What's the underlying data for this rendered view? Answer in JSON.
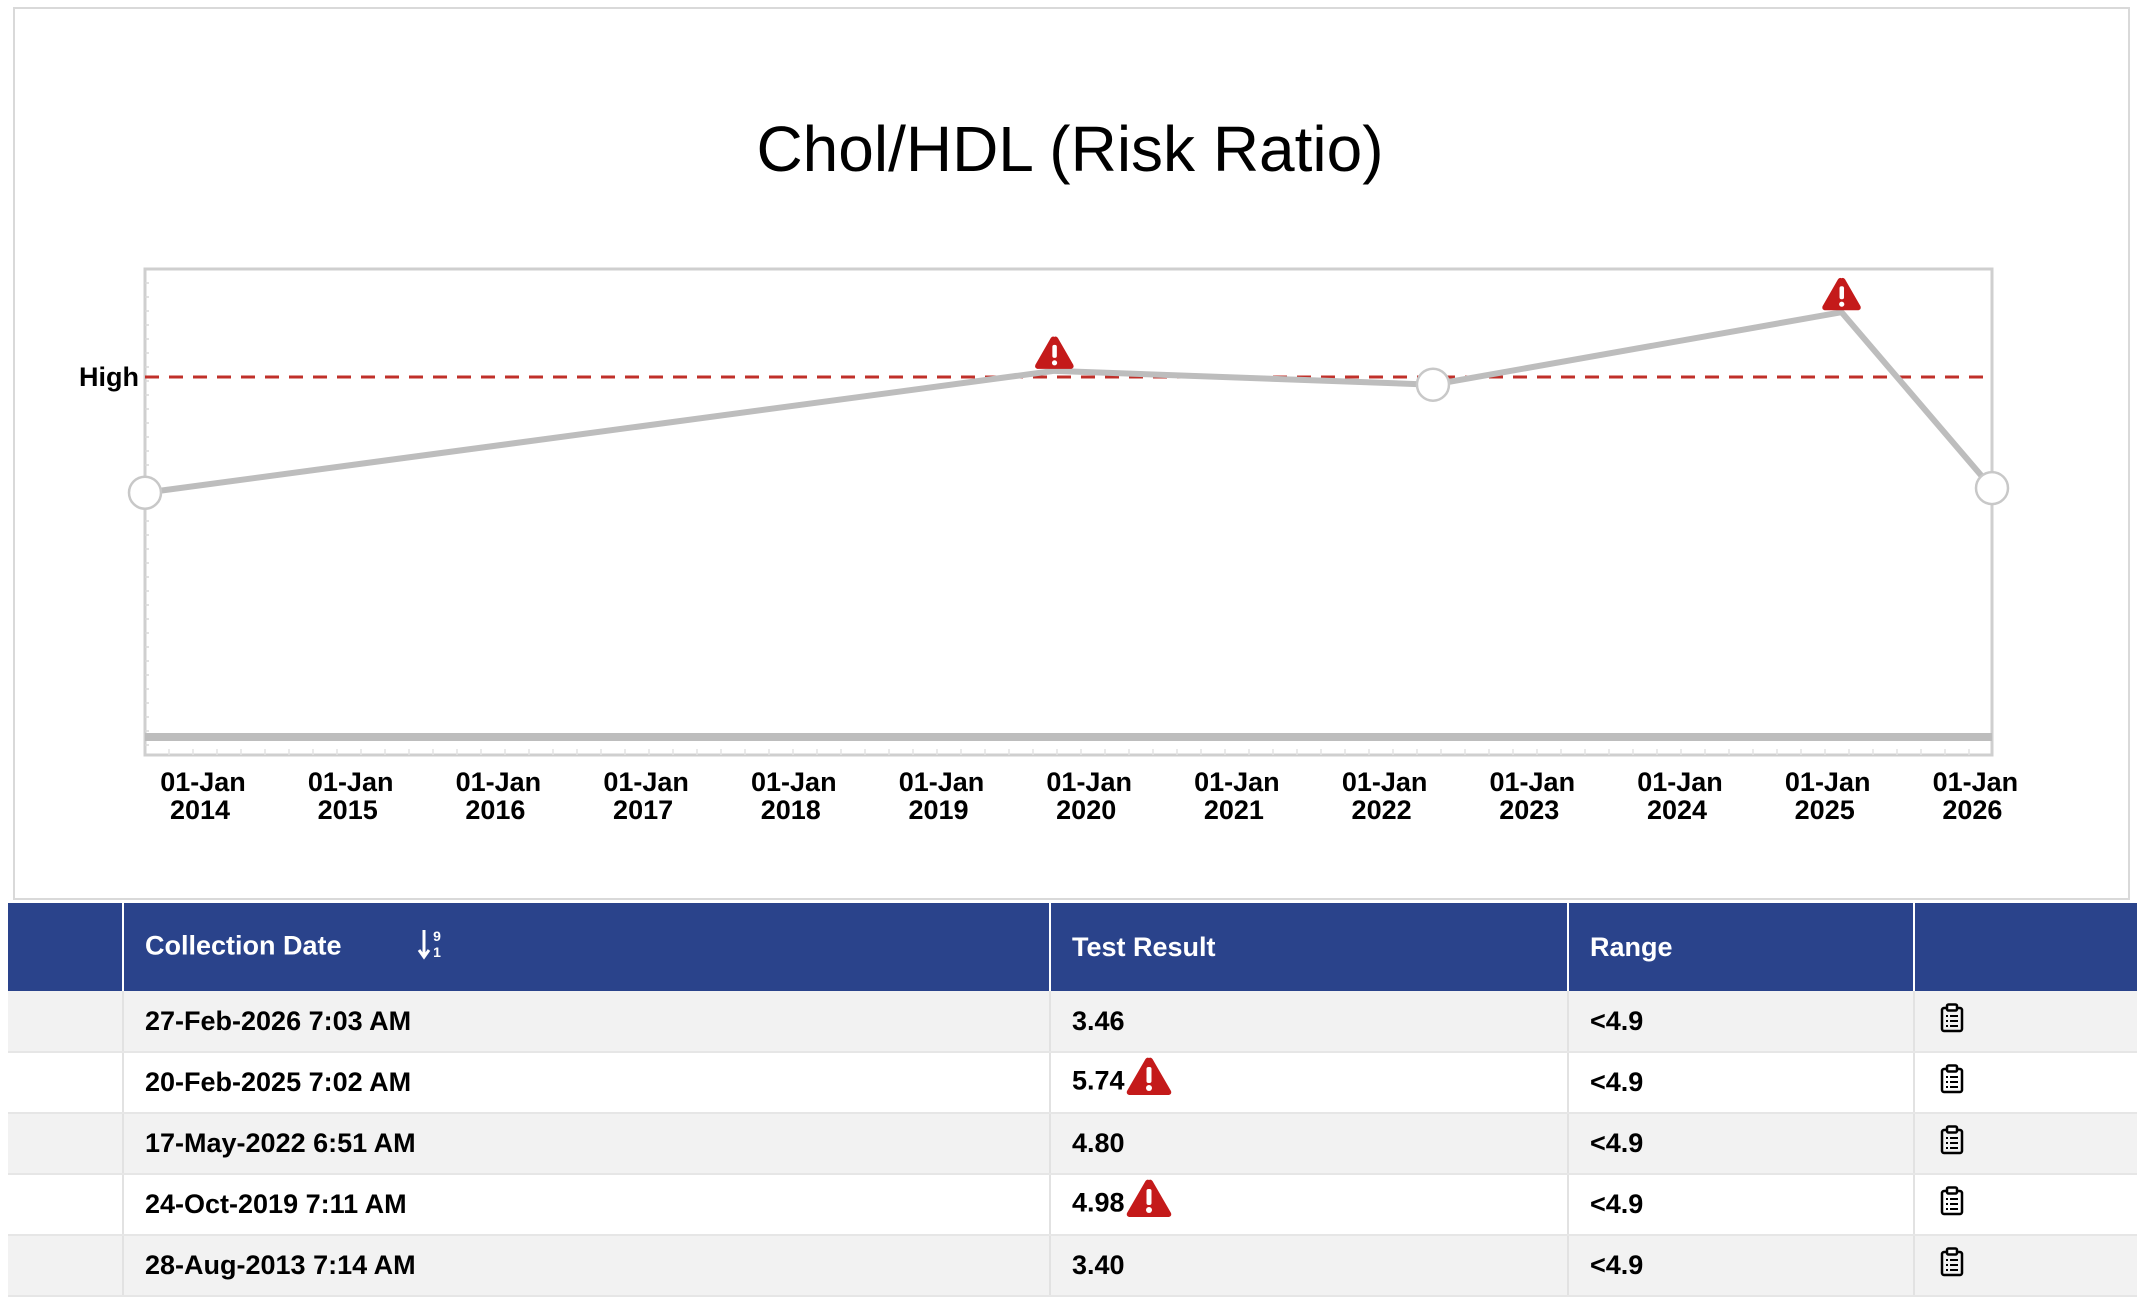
{
  "chart_data": {
    "type": "line",
    "title": "Chol/HDL (Risk Ratio)",
    "xlabel": "",
    "ylabel": "",
    "x_ticks": [
      "01-Jan 2014",
      "01-Jan 2015",
      "01-Jan 2016",
      "01-Jan 2017",
      "01-Jan 2018",
      "01-Jan 2019",
      "01-Jan 2020",
      "01-Jan 2021",
      "01-Jan 2022",
      "01-Jan 2023",
      "01-Jan 2024",
      "01-Jan 2025",
      "01-Jan 2026"
    ],
    "xlim": [
      "2013-08-28",
      "2026-02-27"
    ],
    "ylim": [
      0,
      6.3
    ],
    "reference_line": {
      "label": "High",
      "value": 4.9,
      "color": "#c0302a",
      "style": "dashed"
    },
    "series": [
      {
        "color": "#bdbdbd",
        "points": [
          {
            "x": "2013-08-28",
            "y": 3.4,
            "flag": false
          },
          {
            "x": "2019-10-24",
            "y": 4.98,
            "flag": true
          },
          {
            "x": "2022-05-17",
            "y": 4.8,
            "flag": false
          },
          {
            "x": "2025-02-20",
            "y": 5.74,
            "flag": true
          },
          {
            "x": "2026-02-27",
            "y": 3.46,
            "flag": false
          }
        ]
      }
    ],
    "grid": false,
    "legend": "none"
  },
  "table": {
    "headers": {
      "collection_date": "Collection Date",
      "sort_icon_top": "9",
      "sort_icon_bottom": "1",
      "test_result": "Test Result",
      "range": "Range"
    },
    "rows": [
      {
        "date": "27-Feb-2026 7:03 AM",
        "result": "3.46",
        "flag": false,
        "range": "<4.9"
      },
      {
        "date": "20-Feb-2025 7:02 AM",
        "result": "5.74",
        "flag": true,
        "range": "<4.9"
      },
      {
        "date": "17-May-2022 6:51 AM",
        "result": "4.80",
        "flag": false,
        "range": "<4.9"
      },
      {
        "date": "24-Oct-2019 7:11 AM",
        "result": "4.98",
        "flag": true,
        "range": "<4.9"
      },
      {
        "date": "28-Aug-2013 7:14 AM",
        "result": "3.40",
        "flag": false,
        "range": "<4.9"
      }
    ]
  },
  "icons": {
    "warning": "warning-triangle-icon",
    "row_action": "clipboard-icon",
    "sort": "sort-descending-icon"
  },
  "colors": {
    "header_bg": "#2a438b",
    "warning": "#c41a1a",
    "line": "#bdbdbd",
    "high_line": "#c0302a"
  }
}
